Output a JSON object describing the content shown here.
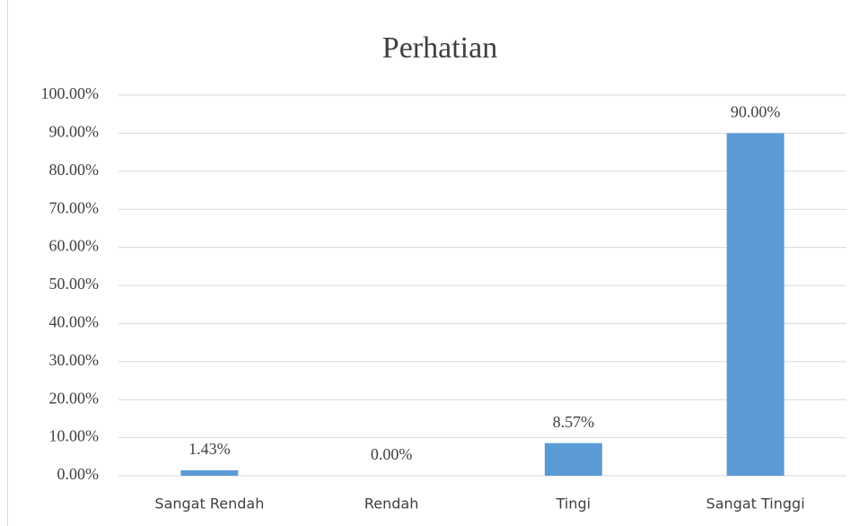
{
  "chart_data": {
    "type": "bar",
    "title": "Perhatian",
    "categories": [
      "Sangat Rendah",
      "Rendah",
      "Tingi",
      "Sangat Tinggi"
    ],
    "values": [
      1.43,
      0,
      8.57,
      90
    ],
    "value_labels": [
      "1.43%",
      "0.00%",
      "8.57%",
      "90.00%"
    ],
    "color": "#5b9bd5",
    "ylim": [
      0,
      100
    ],
    "yticks": [
      {
        "value": 0,
        "label": "0.00%"
      },
      {
        "value": 10,
        "label": "10.00%"
      },
      {
        "value": 20,
        "label": "20.00%"
      },
      {
        "value": 30,
        "label": "30.00%"
      },
      {
        "value": 40,
        "label": "40.00%"
      },
      {
        "value": 50,
        "label": "50.00%"
      },
      {
        "value": 60,
        "label": "60.00%"
      },
      {
        "value": 70,
        "label": "70.00%"
      },
      {
        "value": 80,
        "label": "80.00%"
      },
      {
        "value": 90,
        "label": "90.00%"
      },
      {
        "value": 100,
        "label": "100.00%"
      }
    ],
    "grid": true
  }
}
